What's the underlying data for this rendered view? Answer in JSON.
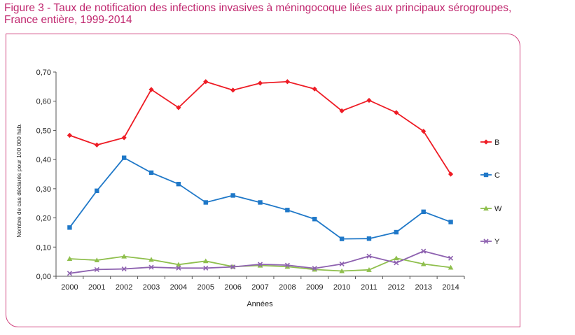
{
  "figure": {
    "title_line1": "Figure 3 - Taux de notification des infections invasives à méningocoque liées aux principaux sérogroupes,",
    "title_line2": "France entière, 1999-2014"
  },
  "chart_data": {
    "type": "line",
    "title": "Figure 3 - Taux de notification des infections invasives à méningocoque liées aux principaux sérogroupes, France entière, 1999-2014",
    "xlabel": "Années",
    "ylabel": "Nombre de cas déclarés pour 100 000 hab.",
    "x": [
      "2000",
      "2001",
      "2002",
      "2003",
      "2004",
      "2005",
      "2006",
      "2007",
      "2008",
      "2009",
      "2010",
      "2011",
      "2012",
      "2013",
      "2014"
    ],
    "ylim": [
      0,
      0.7
    ],
    "yticks": [
      "0,00",
      "0,10",
      "0,20",
      "0,30",
      "0,40",
      "0,50",
      "0,60",
      "0,70"
    ],
    "grid": false,
    "legend_position": "right",
    "series": [
      {
        "name": "B",
        "color": "#ee1c25",
        "marker": "diamond",
        "values": [
          0.483,
          0.45,
          0.475,
          0.64,
          0.578,
          0.667,
          0.638,
          0.662,
          0.667,
          0.642,
          0.567,
          0.603,
          0.561,
          0.497,
          0.35
        ]
      },
      {
        "name": "C",
        "color": "#1f78c8",
        "marker": "square",
        "values": [
          0.167,
          0.293,
          0.406,
          0.355,
          0.316,
          0.253,
          0.277,
          0.253,
          0.227,
          0.196,
          0.128,
          0.129,
          0.151,
          0.221,
          0.186
        ]
      },
      {
        "name": "W",
        "color": "#8fbf4d",
        "marker": "triangle",
        "values": [
          0.06,
          0.055,
          0.068,
          0.057,
          0.04,
          0.052,
          0.033,
          0.037,
          0.033,
          0.023,
          0.018,
          0.022,
          0.062,
          0.042,
          0.03
        ]
      },
      {
        "name": "Y",
        "color": "#8e62b0",
        "marker": "x",
        "values": [
          0.01,
          0.023,
          0.025,
          0.031,
          0.028,
          0.028,
          0.032,
          0.041,
          0.038,
          0.027,
          0.042,
          0.069,
          0.046,
          0.086,
          0.062
        ]
      }
    ]
  }
}
